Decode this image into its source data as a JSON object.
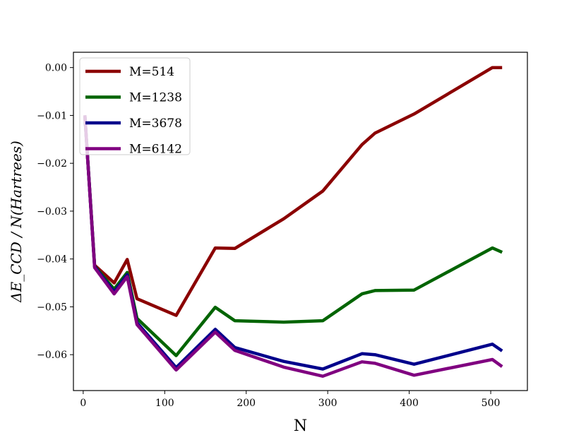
{
  "chart_data": {
    "type": "line",
    "xlabel": "N",
    "ylabel": "ΔE_CCD / N(Hartrees)",
    "xlim": [
      -12,
      545
    ],
    "ylim": [
      -0.0675,
      0.0032
    ],
    "xticks": [
      0,
      100,
      200,
      300,
      400,
      500
    ],
    "xtick_labels": [
      "0",
      "100",
      "200",
      "300",
      "400",
      "500"
    ],
    "yticks": [
      0.0,
      -0.01,
      -0.02,
      -0.03,
      -0.04,
      -0.05,
      -0.06
    ],
    "ytick_labels": [
      "0.00",
      "−0.01",
      "−0.02",
      "−0.03",
      "−0.04",
      "−0.05",
      "−0.06"
    ],
    "legend_position": "top-left",
    "grid": false,
    "series": [
      {
        "name": "M=514",
        "color": "#8b0000",
        "x": [
          2,
          14,
          38,
          54,
          66,
          114,
          162,
          186,
          246,
          294,
          342,
          358,
          406,
          502,
          514
        ],
        "y": [
          -0.01,
          -0.0413,
          -0.045,
          -0.0401,
          -0.0483,
          -0.0518,
          -0.0377,
          -0.0378,
          -0.0316,
          -0.0258,
          -0.0161,
          -0.0137,
          -0.0097,
          0.0,
          0.0
        ]
      },
      {
        "name": "M=1238",
        "color": "#006400",
        "x": [
          2,
          14,
          38,
          54,
          66,
          114,
          162,
          186,
          246,
          294,
          342,
          358,
          406,
          502,
          514
        ],
        "y": [
          -0.01,
          -0.0415,
          -0.0463,
          -0.0428,
          -0.0524,
          -0.0602,
          -0.0501,
          -0.0529,
          -0.0532,
          -0.0529,
          -0.0473,
          -0.0466,
          -0.0465,
          -0.0377,
          -0.0386
        ]
      },
      {
        "name": "M=3678",
        "color": "#00008b",
        "x": [
          2,
          14,
          38,
          54,
          66,
          114,
          162,
          186,
          246,
          294,
          342,
          358,
          406,
          502,
          514
        ],
        "y": [
          -0.01,
          -0.0416,
          -0.0469,
          -0.0433,
          -0.0533,
          -0.0627,
          -0.0547,
          -0.0585,
          -0.0614,
          -0.063,
          -0.0598,
          -0.06,
          -0.062,
          -0.0578,
          -0.0592
        ]
      },
      {
        "name": "M=6142",
        "color": "#800080",
        "x": [
          2,
          14,
          38,
          54,
          66,
          114,
          162,
          186,
          246,
          294,
          342,
          358,
          406,
          502,
          514
        ],
        "y": [
          -0.01,
          -0.0418,
          -0.0473,
          -0.0437,
          -0.0537,
          -0.0632,
          -0.0553,
          -0.0591,
          -0.0626,
          -0.0645,
          -0.0615,
          -0.0618,
          -0.0643,
          -0.061,
          -0.0625
        ]
      }
    ]
  }
}
